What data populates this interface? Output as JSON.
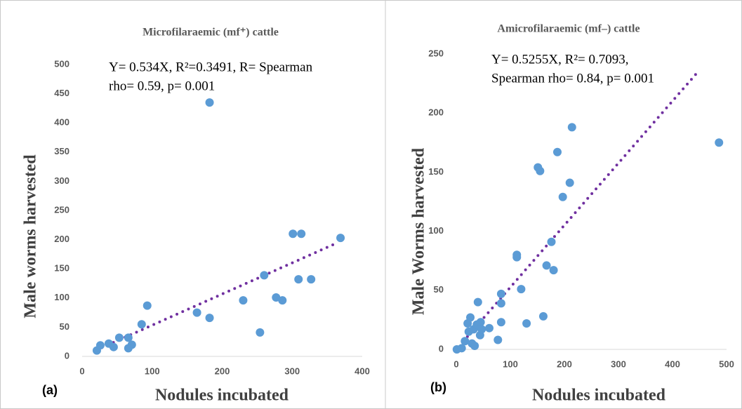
{
  "chart_data": [
    {
      "type": "scatter",
      "panel": "(a)",
      "title": "Microfilaraemic (mf⁺) cattle",
      "annotation": [
        "Y= 0.534X, R²=0.3491, R= Spearman",
        "rho= 0.59, p= 0.001"
      ],
      "x_label": "Nodules incubated",
      "y_label": "Male worms harvested",
      "xlim": [
        0,
        400
      ],
      "xticks": [
        0,
        100,
        200,
        300,
        400
      ],
      "ylim": [
        0,
        500
      ],
      "yticks": [
        0,
        50,
        100,
        150,
        200,
        250,
        300,
        350,
        400,
        450,
        500
      ],
      "color": "#5b9bd5",
      "x": [
        21,
        26,
        38,
        45,
        53,
        66,
        66,
        71,
        85,
        93,
        164,
        182,
        182,
        230,
        254,
        260,
        277,
        286,
        301,
        313,
        309,
        327,
        369
      ],
      "y": [
        10,
        19,
        22,
        16,
        32,
        14,
        32,
        20,
        55,
        87,
        75,
        66,
        435,
        96,
        41,
        139,
        101,
        96,
        210,
        210,
        132,
        132,
        203
      ],
      "trendline": {
        "slope": 0.534,
        "x": [
          20,
          365
        ],
        "color": "#7030a0"
      }
    },
    {
      "type": "scatter",
      "panel": "(b)",
      "title": "Amicrofilaraemic (mf–) cattle",
      "annotation": [
        "Y= 0.5255X, R²= 0.7093,",
        "Spearman rho= 0.84, p= 0.001"
      ],
      "x_label": "Nodules incubated",
      "y_label": "Male Worms harvested",
      "xlim": [
        0,
        500
      ],
      "xticks": [
        0,
        100,
        200,
        300,
        400,
        500
      ],
      "ylim": [
        0,
        250
      ],
      "yticks": [
        0,
        50,
        100,
        150,
        200,
        250
      ],
      "color": "#5b9bd5",
      "x": [
        1,
        10,
        16,
        21,
        23,
        26,
        29,
        34,
        32,
        38,
        40,
        44,
        45,
        47,
        61,
        77,
        83,
        83,
        83,
        112,
        112,
        120,
        130,
        151,
        155,
        161,
        167,
        176,
        180,
        187,
        197,
        210,
        214,
        486
      ],
      "y": [
        0,
        1,
        7,
        22,
        15,
        27,
        5,
        3,
        17,
        21,
        40,
        12,
        23,
        17,
        18,
        8,
        39,
        47,
        23,
        80,
        78,
        51,
        22,
        154,
        151,
        28,
        71,
        91,
        67,
        167,
        129,
        141,
        188,
        175
      ],
      "trendline": {
        "slope": 0.5255,
        "x": [
          13,
          447
        ],
        "color": "#7030a0"
      }
    }
  ]
}
